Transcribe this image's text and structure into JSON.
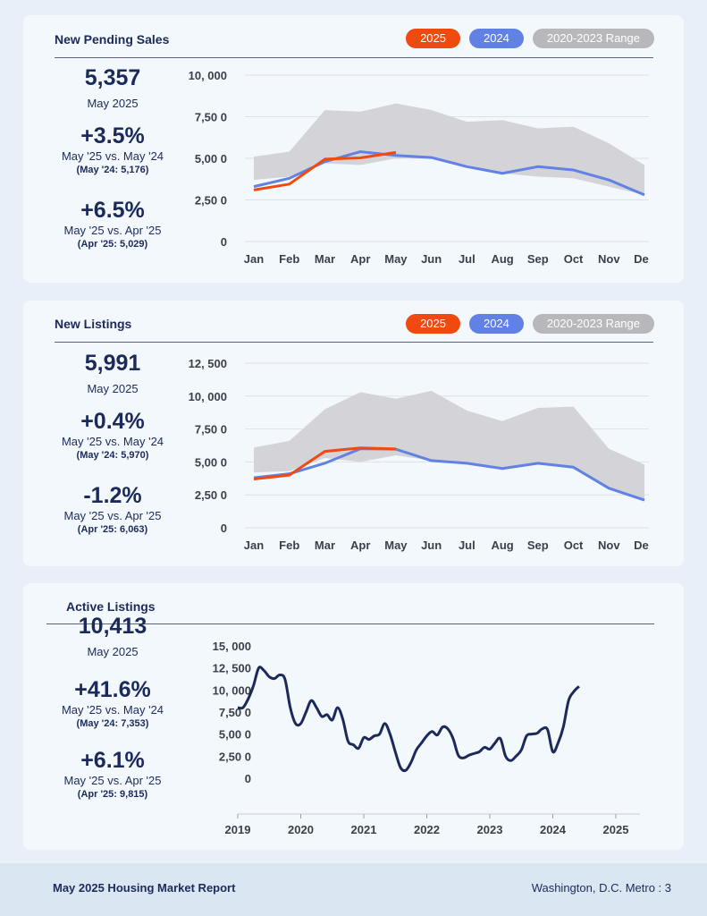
{
  "colors": {
    "c2025": "#f04a10",
    "c2024": "#6181e4",
    "range": "#d4d4d8",
    "active": "#1b2a5a"
  },
  "footer": {
    "left": "May 2025 Housing Market Report",
    "right": "Washington, D.C. Metro : 3"
  },
  "pending": {
    "title": "New Pending Sales",
    "legend": [
      "2025",
      "2024",
      "2020-2023 Range"
    ],
    "stat1_value": "5,357",
    "stat1_label": "May 2025",
    "stat2_value": "+3.5%",
    "stat2_label": "May '25 vs. May '24",
    "stat2_note": "(May '24: 5,176)",
    "stat3_value": "+6.5%",
    "stat3_label": "May '25 vs. Apr '25",
    "stat3_note": "(Apr '25: 5,029)"
  },
  "listings": {
    "title": "New Listings",
    "legend": [
      "2025",
      "2024",
      "2020-2023 Range"
    ],
    "stat1_value": "5,991",
    "stat1_label": "May 2025",
    "stat2_value": "+0.4%",
    "stat2_label": "May '25 vs. May '24",
    "stat2_note": "(May '24: 5,970)",
    "stat3_value": "-1.2%",
    "stat3_label": "May '25 vs. Apr '25",
    "stat3_note": "(Apr '25: 6,063)"
  },
  "active": {
    "title": "Active Listings",
    "stat1_value": "10,413",
    "stat1_label": "May 2025",
    "stat2_value": "+41.6%",
    "stat2_label": "May '25 vs. May '24",
    "stat2_note": "(May '24: 7,353)",
    "stat3_value": "+6.1%",
    "stat3_label": "May '25 vs. Apr '25",
    "stat3_note": "(Apr '25: 9,815)"
  },
  "chart_data": [
    {
      "type": "line",
      "months": [
        "Jan",
        "Feb",
        "Mar",
        "Apr",
        "May",
        "Jun",
        "Jul",
        "Aug",
        "Sep",
        "Oct",
        "Nov",
        "Dec"
      ],
      "ylim": [
        0,
        10000
      ],
      "yticks": [
        0,
        2500,
        5000,
        7500,
        10000
      ],
      "ytick_labels": [
        "0",
        "2,50 0",
        "5,00 0",
        "7,50 0",
        "10, 000"
      ],
      "grid": true,
      "series": [
        {
          "name": "2025",
          "values": [
            3100,
            3450,
            4950,
            5029,
            5357
          ]
        },
        {
          "name": "2024",
          "values": [
            3300,
            3800,
            4800,
            5400,
            5176,
            5050,
            4500,
            4100,
            4500,
            4300,
            3700,
            2800
          ]
        }
      ],
      "range_2020_2023": {
        "low": [
          3700,
          3900,
          4700,
          4600,
          5000,
          5000,
          4600,
          4100,
          3900,
          3800,
          3300,
          2800
        ],
        "high": [
          5100,
          5400,
          7900,
          7800,
          8300,
          7900,
          7200,
          7300,
          6800,
          6900,
          5900,
          4600
        ]
      }
    },
    {
      "type": "line",
      "months": [
        "Jan",
        "Feb",
        "Mar",
        "Apr",
        "May",
        "Jun",
        "Jul",
        "Aug",
        "Sep",
        "Oct",
        "Nov",
        "Dec"
      ],
      "ylim": [
        0,
        12500
      ],
      "yticks": [
        0,
        2500,
        5000,
        7500,
        10000,
        12500
      ],
      "ytick_labels": [
        "0",
        "2,50 0",
        "5,00 0",
        "7,50 0",
        "10, 000",
        "12, 500"
      ],
      "grid": true,
      "series": [
        {
          "name": "2025",
          "values": [
            3700,
            4000,
            5800,
            6063,
            5991
          ]
        },
        {
          "name": "2024",
          "values": [
            3800,
            4100,
            4900,
            6000,
            5970,
            5100,
            4900,
            4500,
            4900,
            4600,
            3000,
            2100
          ]
        }
      ],
      "range_2020_2023": {
        "low": [
          4200,
          4300,
          5300,
          5000,
          5500,
          5100,
          4900,
          4500,
          4800,
          4500,
          3100,
          2200
        ],
        "high": [
          6100,
          6600,
          9000,
          10300,
          9800,
          10400,
          8900,
          8100,
          9100,
          9200,
          6000,
          4800
        ]
      }
    },
    {
      "type": "line",
      "x_start": "2019-01",
      "x_labels": [
        "2019",
        "2020",
        "2021",
        "2022",
        "2023",
        "2024",
        "2025"
      ],
      "ylim": [
        0,
        15000
      ],
      "yticks": [
        0,
        2500,
        5000,
        7500,
        10000,
        12500,
        15000
      ],
      "ytick_labels": [
        "0",
        "2,50 0",
        "5,00 0",
        "7,50 0",
        "10, 000",
        "12, 500",
        "15, 000"
      ],
      "grid": false,
      "series": [
        {
          "values": [
            8000,
            8000,
            9000,
            10500,
            12500,
            12200,
            11500,
            11300,
            11700,
            11200,
            8000,
            6200,
            6200,
            7500,
            8800,
            8000,
            7000,
            7200,
            6600,
            8000,
            6700,
            4200,
            3800,
            3400,
            4600,
            4400,
            4800,
            5000,
            6200,
            5000,
            3000,
            1200,
            900,
            1800,
            3200,
            4000,
            4800,
            5300,
            4900,
            5800,
            5600,
            4500,
            2600,
            2300,
            2600,
            2800,
            3000,
            3500,
            3300,
            4000,
            4500,
            2500,
            2000,
            2500,
            3200,
            4800,
            5000,
            5100,
            5600,
            5500,
            3000,
            4000,
            5800,
            8800,
            9815,
            10413
          ]
        }
      ]
    }
  ]
}
